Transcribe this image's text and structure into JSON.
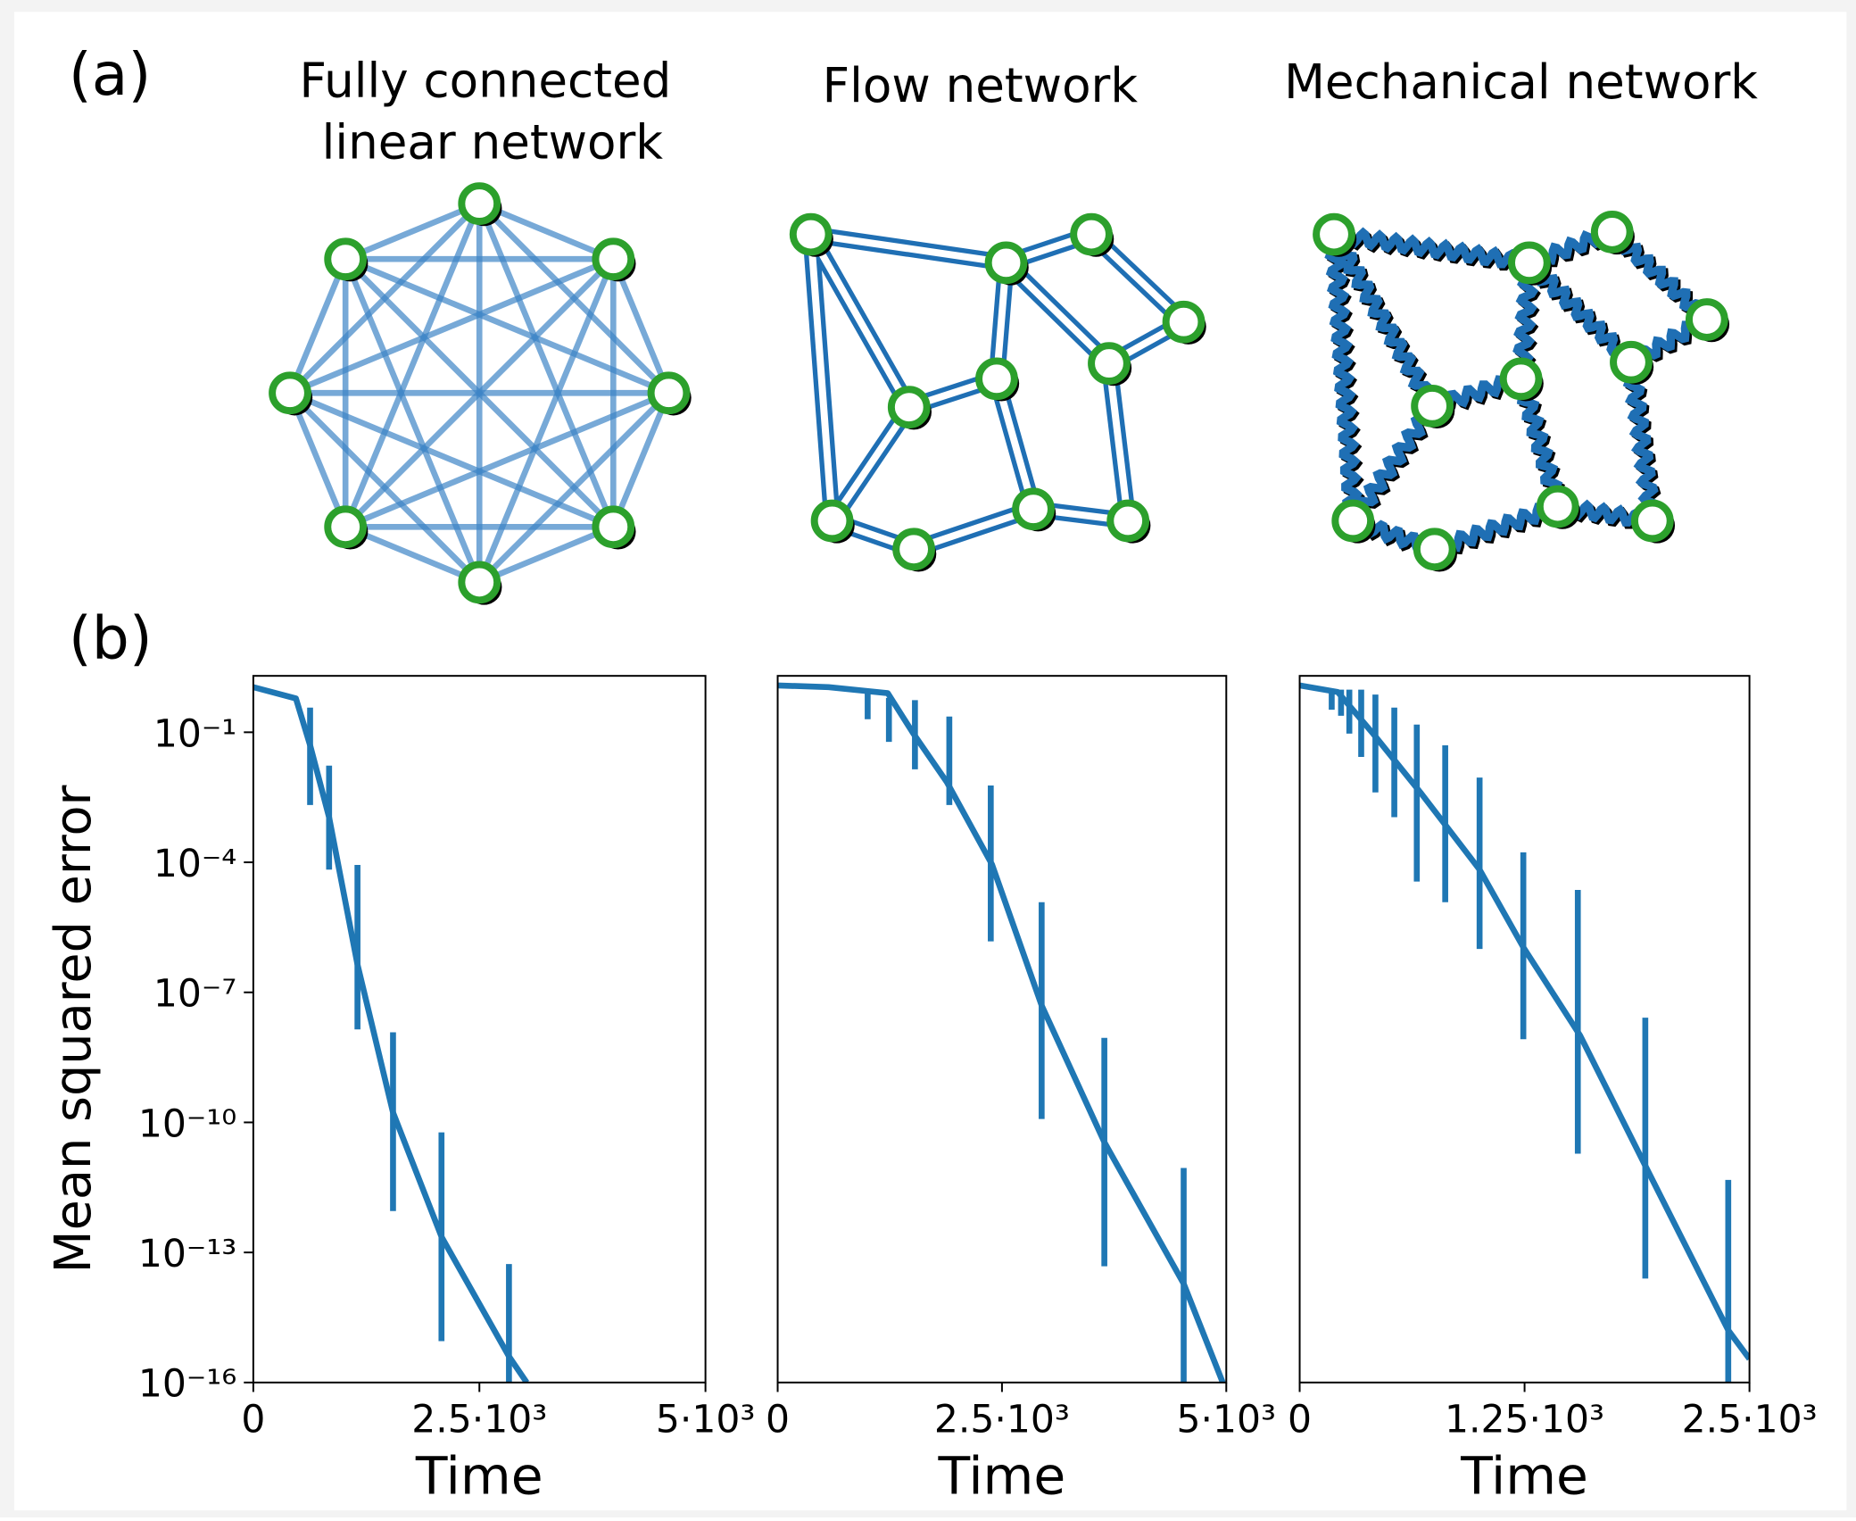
{
  "panel_labels": [
    "(a)",
    "(b)"
  ],
  "diagrams": [
    {
      "title": [
        "Fully connected",
        "linear network"
      ]
    },
    {
      "title": [
        "Flow network"
      ]
    },
    {
      "title": [
        "Mechanical network"
      ]
    }
  ],
  "chart_data": [
    {
      "type": "line",
      "yscale": "log",
      "y_label": "Mean squared error",
      "x_label": "Time",
      "color": "#1f77b4",
      "xlim": [
        0,
        5000
      ],
      "ylim": [
        1e-16,
        2
      ],
      "xticks": [
        0,
        {
          "value": 2500,
          "label": "2.5·10³"
        },
        {
          "value": 5000,
          "label": "5·10³"
        }
      ],
      "yticks": [
        {
          "value": 0.1,
          "label": "10⁻¹"
        },
        {
          "value": 0.0001,
          "label": "10⁻⁴"
        },
        {
          "value": 1e-07,
          "label": "10⁻⁷"
        },
        {
          "value": 1e-10,
          "label": "10⁻¹⁰"
        },
        {
          "value": 1e-13,
          "label": "10⁻¹³"
        },
        {
          "value": 1e-16,
          "label": "10⁻¹⁶"
        }
      ],
      "x": [
        0,
        471,
        628,
        838,
        1152,
        1545,
        2081,
        2827,
        3024
      ],
      "values": [
        1.1,
        0.6,
        0.05,
        0.0011,
        4.4e-07,
        1.7e-10,
        2.3e-13,
        4e-16,
        1e-16
      ],
      "errorbars": {
        "x": [
          628,
          838,
          1152,
          1545,
          2081,
          2827
        ],
        "low": [
          0.0021,
          6.8e-05,
          1.4e-08,
          9e-13,
          9e-16,
          1e-16
        ],
        "high": [
          0.37,
          0.017,
          8.7e-05,
          1.2e-08,
          5.9e-11,
          5.4e-14
        ]
      }
    },
    {
      "type": "line",
      "yscale": "log",
      "x_label": "Time",
      "color": "#1f77b4",
      "xlim": [
        0,
        5000
      ],
      "ylim": [
        1e-16,
        2
      ],
      "xticks": [
        0,
        {
          "value": 2500,
          "label": "2.5·10³"
        },
        {
          "value": 5000,
          "label": "5·10³"
        }
      ],
      "x": [
        0,
        567,
        1227,
        1517,
        1887,
        2388,
        2942,
        3641,
        4525,
        4960
      ],
      "values": [
        1.2,
        1.1,
        0.8,
        0.09,
        0.007,
        9e-05,
        5e-08,
        3.5e-11,
        1.9e-14,
        1e-16
      ],
      "errorbars": {
        "x": [
          1003,
          1240,
          1530,
          1913,
          2375,
          2942,
          3641,
          4525
        ],
        "low": [
          0.2,
          0.06,
          0.014,
          0.0021,
          1.5e-06,
          1.2e-10,
          4.8e-14,
          1e-16
        ],
        "high": [
          0.96,
          0.62,
          0.55,
          0.23,
          0.0059,
          1.2e-05,
          8.9e-09,
          8.9e-12
        ]
      }
    },
    {
      "type": "line",
      "yscale": "log",
      "x_label": "Time",
      "color": "#1f77b4",
      "xlim": [
        0,
        2500
      ],
      "ylim": [
        1e-16,
        2
      ],
      "xticks": [
        0,
        {
          "value": 1250,
          "label": "1.25·10³"
        },
        {
          "value": 2500,
          "label": "2.5·10³"
        }
      ],
      "x": [
        0,
        211,
        408,
        671,
        1000,
        1243,
        1559,
        1921,
        2382,
        2500
      ],
      "values": [
        1.2,
        0.85,
        0.093,
        0.0041,
        6.8e-05,
        1.1e-06,
        1e-08,
        1e-11,
        1.6e-15,
        3.5e-16
      ],
      "errorbars": {
        "x": [
          178,
          230,
          276,
          342,
          421,
          526,
          651,
          809,
          1000,
          1243,
          1546,
          1921,
          2382
        ],
        "low": [
          0.33,
          0.24,
          0.093,
          0.027,
          0.0041,
          0.0011,
          3.6e-05,
          1.2e-05,
          1e-06,
          8.3e-09,
          1.9e-11,
          2.5e-14,
          1e-16
        ],
        "high": [
          0.96,
          0.96,
          0.96,
          0.96,
          0.74,
          0.37,
          0.15,
          0.05,
          0.009,
          0.00017,
          2.3e-05,
          2.6e-08,
          4.7e-12
        ]
      }
    }
  ]
}
